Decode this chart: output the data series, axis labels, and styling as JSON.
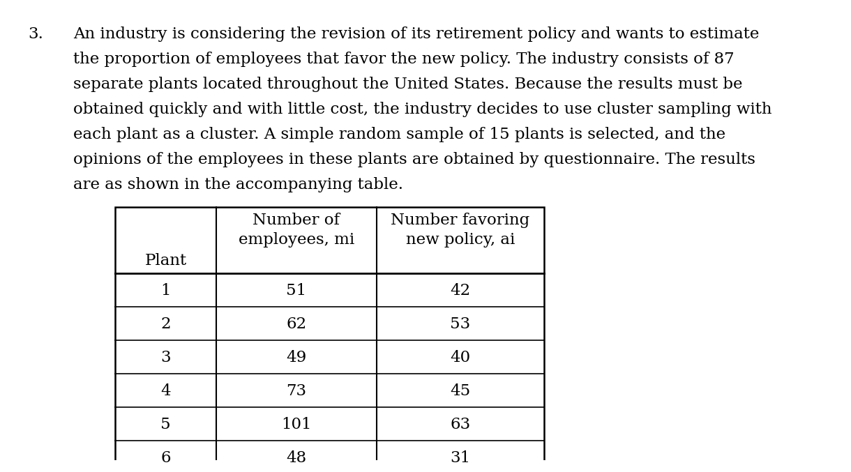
{
  "problem_number": "3.",
  "paragraph_lines": [
    "An industry is considering the revision of its retirement policy and wants to estimate",
    "the proportion of employees that favor the new policy. The industry consists of 87",
    "separate plants located throughout the United States. Because the results must be",
    "obtained quickly and with little cost, the industry decides to use cluster sampling with",
    "each plant as a cluster. A simple random sample of 15 plants is selected, and the",
    "opinions of the employees in these plants are obtained by questionnaire. The results",
    "are as shown in the accompanying table."
  ],
  "row_label": "Plant",
  "col_header_1a": "Number of",
  "col_header_1b": "employees, mi",
  "col_header_2a": "Number favoring",
  "col_header_2b": "new policy, ai",
  "plants": [
    1,
    2,
    3,
    4,
    5,
    6
  ],
  "employees_mi": [
    51,
    62,
    49,
    73,
    101,
    48
  ],
  "favoring_ai": [
    42,
    53,
    40,
    45,
    63,
    31
  ],
  "bg_color": "#ffffff",
  "text_color": "#000000",
  "font_size_para": 16.5,
  "font_size_table": 16.5,
  "font_family": "DejaVu Serif"
}
